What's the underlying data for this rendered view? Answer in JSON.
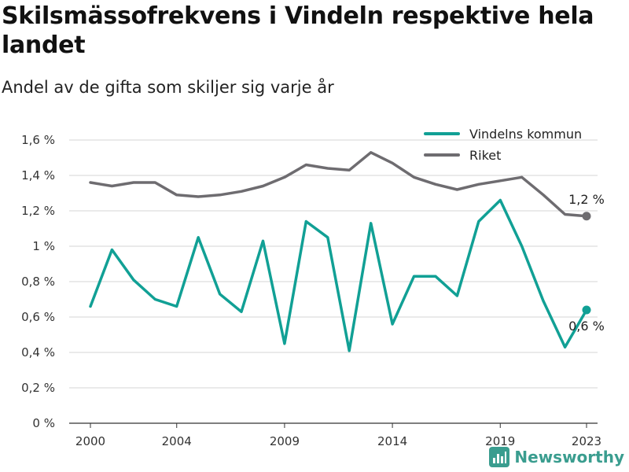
{
  "title": "Skilsmässofrekvens i Vindeln respektive hela landet",
  "subtitle": "Andel av de gifta som skiljer sig varje år",
  "brand": "Newsworthy",
  "colors": {
    "vindeln": "#11a095",
    "riket": "#6e6c70",
    "grid": "#d4d4d4",
    "axis": "#333333"
  },
  "chart_data": {
    "type": "line",
    "x": [
      2000,
      2001,
      2002,
      2003,
      2004,
      2005,
      2006,
      2007,
      2008,
      2009,
      2010,
      2011,
      2012,
      2013,
      2014,
      2015,
      2016,
      2017,
      2018,
      2019,
      2020,
      2021,
      2022,
      2023
    ],
    "x_ticks": [
      2000,
      2004,
      2009,
      2014,
      2019,
      2023
    ],
    "x_tick_labels": [
      "2000",
      "2004",
      "2009",
      "2014",
      "2019",
      "2023"
    ],
    "ylim": [
      0,
      1.6
    ],
    "y_ticks": [
      0,
      0.2,
      0.4,
      0.6,
      0.8,
      1.0,
      1.2,
      1.4,
      1.6
    ],
    "y_tick_labels": [
      "0 %",
      "0,2 %",
      "0,4 %",
      "0,6 %",
      "0,8 %",
      "1 %",
      "1,2 %",
      "1,4 %",
      "1,6 %"
    ],
    "grid": true,
    "legend_position": "top-right",
    "series": [
      {
        "name": "Vindelns kommun",
        "key": "vindeln",
        "values": [
          0.66,
          0.98,
          0.81,
          0.7,
          0.66,
          1.05,
          0.73,
          0.63,
          1.03,
          0.45,
          1.14,
          1.05,
          0.41,
          1.13,
          0.56,
          0.83,
          0.83,
          0.72,
          1.14,
          1.26,
          1.0,
          0.69,
          0.43,
          0.64
        ],
        "end_label": "0,6 %"
      },
      {
        "name": "Riket",
        "key": "riket",
        "values": [
          1.36,
          1.34,
          1.36,
          1.36,
          1.29,
          1.28,
          1.29,
          1.31,
          1.34,
          1.39,
          1.46,
          1.44,
          1.43,
          1.53,
          1.47,
          1.39,
          1.35,
          1.32,
          1.35,
          1.37,
          1.39,
          1.29,
          1.18,
          1.17
        ],
        "end_label": "1,2 %"
      }
    ]
  }
}
